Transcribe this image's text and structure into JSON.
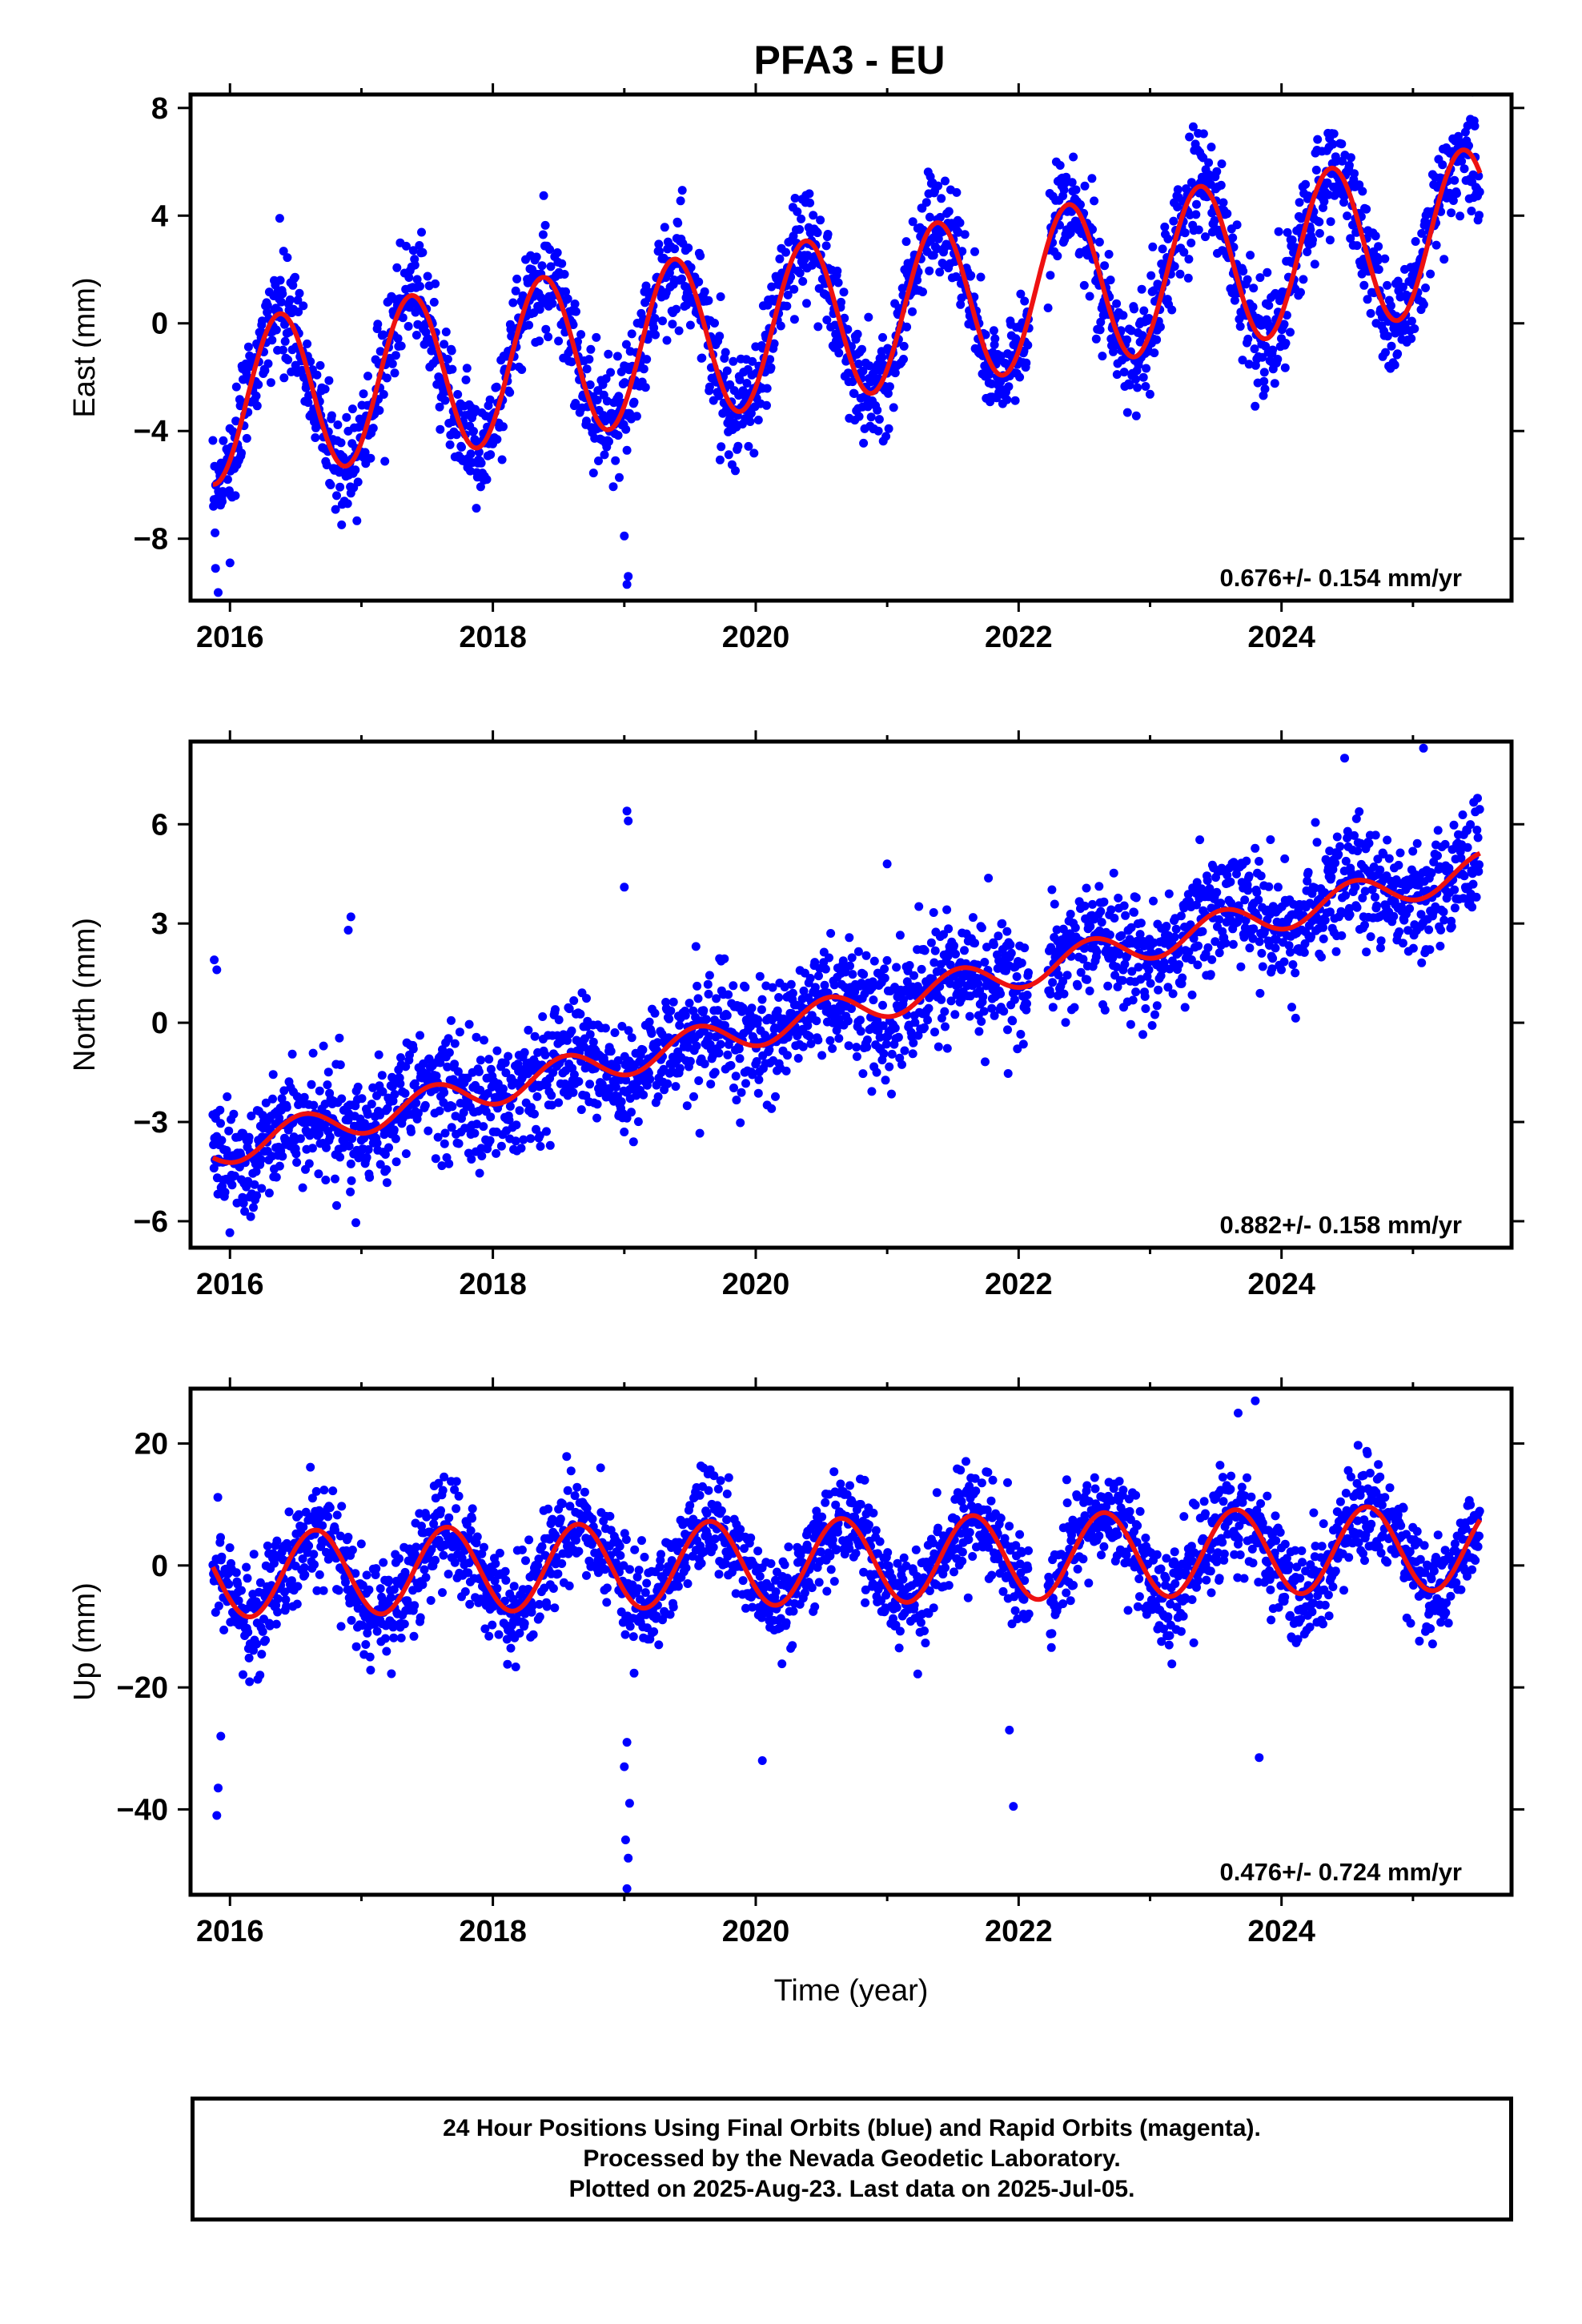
{
  "title": "PFA3 - EU",
  "footer": {
    "line1": "24 Hour Positions Using Final Orbits (blue) and Rapid Orbits (magenta).",
    "line2": "Processed by the Nevada Geodetic Laboratory.",
    "line3": "Plotted on 2025-Aug-23. Last data on 2025-Jul-05."
  },
  "colors": {
    "points": "#0000ff",
    "model": "#ee1111",
    "axis": "#000000"
  },
  "chart_data": [
    {
      "type": "scatter",
      "ylabel": "East (mm)",
      "xlabel": "",
      "xlim": [
        2015.7,
        2025.75
      ],
      "ylim": [
        -10.3,
        8.5
      ],
      "xticks": [
        2016,
        2018,
        2020,
        2022,
        2024
      ],
      "xticklabels": [
        "2016",
        "2018",
        "2020",
        "2022",
        "2024"
      ],
      "yticks": [
        -8,
        -4,
        0,
        4,
        8
      ],
      "yticklabels": [
        "−8",
        "−4",
        "0",
        "4",
        "8"
      ],
      "rate_label": "0.676+/- 0.154 mm/yr",
      "model": {
        "intercept": -2.9,
        "rate": 0.676,
        "amplitude": 3.0,
        "phase_year": 2016.38,
        "t0": 2016.0
      },
      "scatter_sigma": 1.0,
      "outliers": [
        [
          2015.91,
          -10.0
        ],
        [
          2015.89,
          -9.1
        ],
        [
          2016.0,
          -8.9
        ],
        [
          2019.02,
          -9.7
        ],
        [
          2019.03,
          -9.4
        ],
        [
          2019.0,
          -7.9
        ]
      ]
    },
    {
      "type": "scatter",
      "ylabel": "North (mm)",
      "xlabel": "",
      "xlim": [
        2015.7,
        2025.75
      ],
      "ylim": [
        -6.8,
        8.5
      ],
      "xticks": [
        2016,
        2018,
        2020,
        2022,
        2024
      ],
      "xticklabels": [
        "2016",
        "2018",
        "2020",
        "2022",
        "2024"
      ],
      "yticks": [
        -6,
        -3,
        0,
        3,
        6
      ],
      "yticklabels": [
        "−6",
        "−3",
        "0",
        "3",
        "6"
      ],
      "rate_label": "0.882+/- 0.158 mm/yr",
      "model": {
        "intercept": -3.75,
        "rate": 0.882,
        "amplitude": 0.5,
        "phase_year": 2016.55,
        "t0": 2016.0
      },
      "scatter_sigma": 0.9,
      "outliers": [
        [
          2015.88,
          1.9
        ],
        [
          2015.9,
          1.6
        ],
        [
          2016.92,
          3.2
        ],
        [
          2016.9,
          2.8
        ],
        [
          2019.02,
          6.4
        ],
        [
          2019.03,
          6.1
        ],
        [
          2019.0,
          4.1
        ],
        [
          2025.08,
          8.3
        ],
        [
          2024.48,
          8.0
        ],
        [
          2021.0,
          4.8
        ]
      ]
    },
    {
      "type": "scatter",
      "ylabel": "Up (mm)",
      "xlabel": "Time (year)",
      "xlim": [
        2015.7,
        2025.75
      ],
      "ylim": [
        -54,
        29
      ],
      "xticks": [
        2016,
        2018,
        2020,
        2022,
        2024
      ],
      "xticklabels": [
        "2016",
        "2018",
        "2020",
        "2022",
        "2024"
      ],
      "yticks": [
        -40,
        -20,
        0,
        20
      ],
      "yticklabels": [
        "−40",
        "−20",
        "0",
        "20"
      ],
      "rate_label": "0.476+/- 0.724 mm/yr",
      "model": {
        "intercept": -1.5,
        "rate": 0.476,
        "amplitude": 7.0,
        "phase_year": 2016.65,
        "t0": 2016.0
      },
      "scatter_sigma": 4.2,
      "outliers": [
        [
          2015.9,
          -41
        ],
        [
          2015.91,
          -36.5
        ],
        [
          2015.93,
          -28
        ],
        [
          2019.02,
          -53
        ],
        [
          2019.03,
          -48
        ],
        [
          2019.01,
          -45
        ],
        [
          2019.04,
          -39
        ],
        [
          2019.0,
          -33
        ],
        [
          2019.02,
          -29
        ],
        [
          2021.96,
          -39.5
        ],
        [
          2023.83,
          -31.5
        ],
        [
          2023.67,
          25
        ],
        [
          2023.8,
          27
        ],
        [
          2021.93,
          -27
        ],
        [
          2020.05,
          -32
        ]
      ]
    }
  ]
}
